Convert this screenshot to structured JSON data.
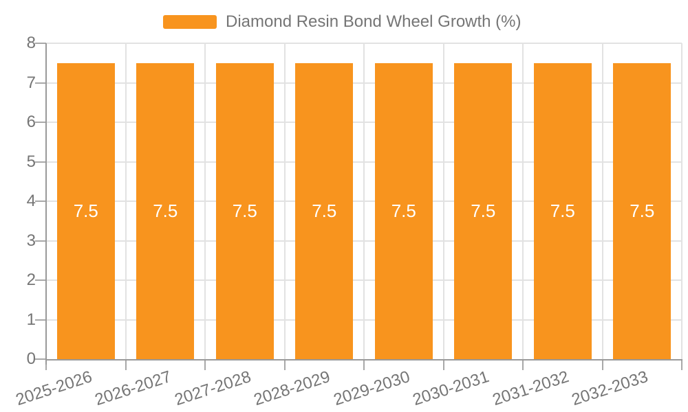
{
  "legend": {
    "label": "Diamond Resin Bond Wheel Growth (%)"
  },
  "chart_data": {
    "type": "bar",
    "title": "Diamond Resin Bond Wheel Growth (%)",
    "categories": [
      "2025-2026",
      "2026-2027",
      "2027-2028",
      "2028-2029",
      "2029-2030",
      "2030-2031",
      "2031-2032",
      "2032-2033"
    ],
    "series": [
      {
        "name": "Diamond Resin Bond Wheel Growth (%)",
        "values": [
          7.5,
          7.5,
          7.5,
          7.5,
          7.5,
          7.5,
          7.5,
          7.5
        ]
      }
    ],
    "bar_value_labels": [
      "7.5",
      "7.5",
      "7.5",
      "7.5",
      "7.5",
      "7.5",
      "7.5",
      "7.5"
    ],
    "xlabel": "",
    "ylabel": "",
    "ylim": [
      0,
      8
    ],
    "yticks": [
      0,
      1,
      2,
      3,
      4,
      5,
      6,
      7,
      8
    ],
    "grid": true,
    "legend_position": "top-center",
    "x_label_rotation_deg": -18,
    "colors": {
      "bar": "#F8941E",
      "bar_label_text": "#FFFFFF",
      "axis": "#999999",
      "tick": "#A8A8A8",
      "gridline": "#E2E2E2",
      "tick_label_text": "#757575",
      "legend_text": "#757575"
    }
  }
}
